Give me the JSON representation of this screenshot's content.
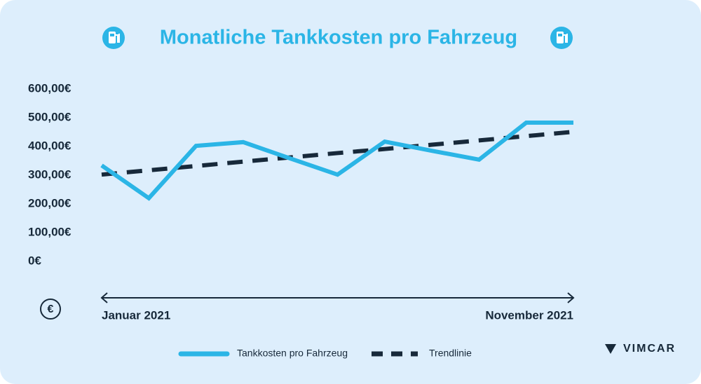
{
  "chart_data": {
    "type": "line",
    "title": "Monatliche Tankkosten pro Fahrzeug",
    "categories": [
      "Januar 2021",
      null,
      null,
      null,
      null,
      null,
      null,
      null,
      null,
      null,
      "November 2021"
    ],
    "series": [
      {
        "name": "Tankkosten pro Fahrzeug",
        "color": "#2bb5e6",
        "values": [
          334,
          220,
          402,
          415,
          358,
          302,
          417,
          385,
          354,
          483,
          483
        ]
      },
      {
        "name": "Trendlinie",
        "color": "#17293a",
        "dashed": true,
        "values": [
          302,
          317,
          332,
          347,
          362,
          377,
          391,
          406,
          421,
          436,
          451
        ]
      }
    ],
    "ylim": [
      0,
      600
    ],
    "yticks": [
      {
        "value": 0,
        "label": "0€"
      },
      {
        "value": 100,
        "label": "100,00€"
      },
      {
        "value": 200,
        "label": "200,00€"
      },
      {
        "value": 300,
        "label": "300,00€"
      },
      {
        "value": 400,
        "label": "400,00€"
      },
      {
        "value": 500,
        "label": "500,00€"
      },
      {
        "value": 600,
        "label": "600,00€"
      }
    ],
    "grid": false,
    "brand": "VIMCAR"
  }
}
